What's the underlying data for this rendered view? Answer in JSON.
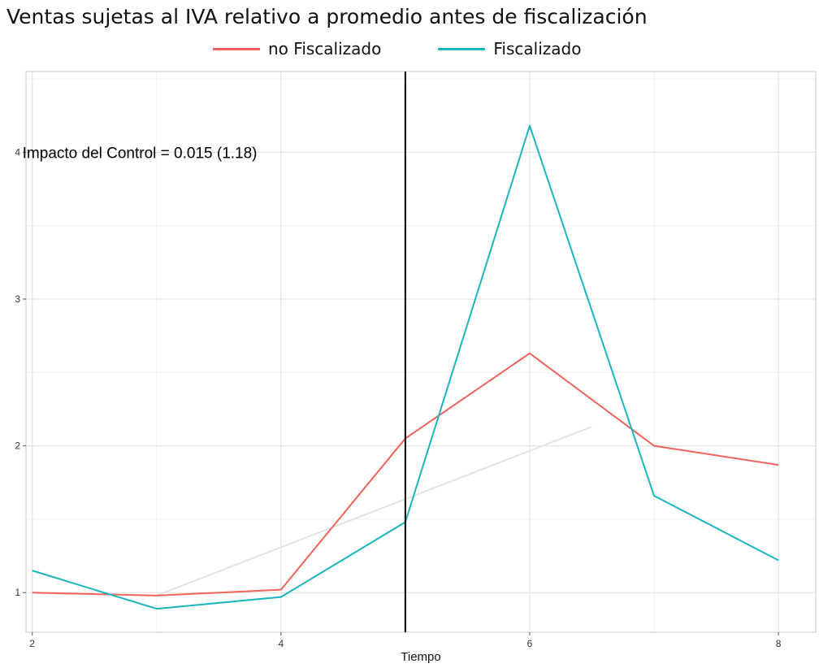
{
  "chart_data": {
    "type": "line",
    "title": "Ventas sujetas al IVA relativo a promedio antes de fiscalización",
    "xlabel": "Tiempo",
    "ylabel": "",
    "x": [
      2,
      3,
      4,
      5,
      6,
      7,
      8
    ],
    "xlim": [
      1.95,
      8.3
    ],
    "ylim": [
      0.73,
      4.55
    ],
    "xticks": [
      2,
      4,
      6,
      8
    ],
    "yticks": [
      1,
      2,
      3,
      4
    ],
    "grid": true,
    "legend_position": "top",
    "series": [
      {
        "name": "no Fiscalizado",
        "color": "#f0635a",
        "values": [
          1.0,
          0.98,
          1.02,
          2.05,
          2.63,
          2.0,
          1.87
        ]
      },
      {
        "name": "Fiscalizado",
        "color": "#1ab5bd",
        "values": [
          1.15,
          0.89,
          0.97,
          1.48,
          4.18,
          1.66,
          1.22
        ]
      }
    ],
    "vline": {
      "x": 5,
      "color": "#000000"
    },
    "faint_line": {
      "x": [
        3,
        6.5
      ],
      "values": [
        0.98,
        2.13
      ],
      "color": "#e3e3e3"
    },
    "annotation": {
      "text": "Impacto del Control = 0.015 (1.18)",
      "x": 2,
      "y": 4.0
    }
  }
}
